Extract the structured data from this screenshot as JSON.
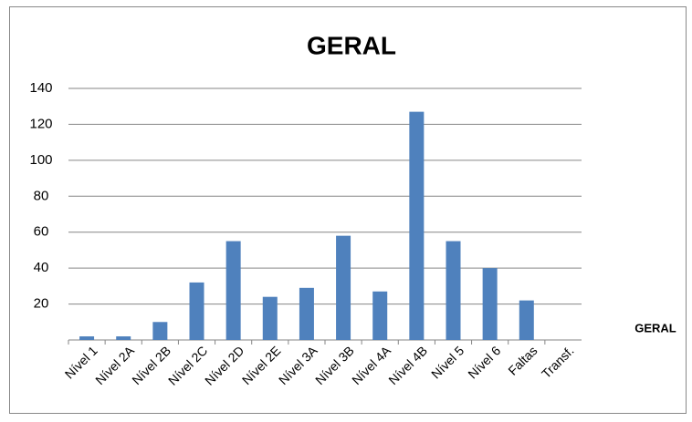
{
  "chart_data": {
    "type": "bar",
    "title": "GERAL",
    "categories": [
      "Nível 1",
      "Nível 2A",
      "Nível 2B",
      "Nível 2C",
      "Nível 2D",
      "Nível 2E",
      "Nível 3A",
      "Nível 3B",
      "Nível 4A",
      "Nível 4B",
      "Nível 5",
      "Nível 6",
      "Faltas",
      "Transf."
    ],
    "series": [
      {
        "name": "GERAL",
        "color": "#4f81bd",
        "values": [
          2,
          2,
          10,
          32,
          55,
          24,
          29,
          58,
          27,
          127,
          55,
          40,
          22,
          0
        ]
      }
    ],
    "ylim": [
      0,
      140
    ],
    "yticks": [
      20,
      40,
      60,
      80,
      100,
      120,
      140
    ],
    "grid": true,
    "legend": "right"
  }
}
